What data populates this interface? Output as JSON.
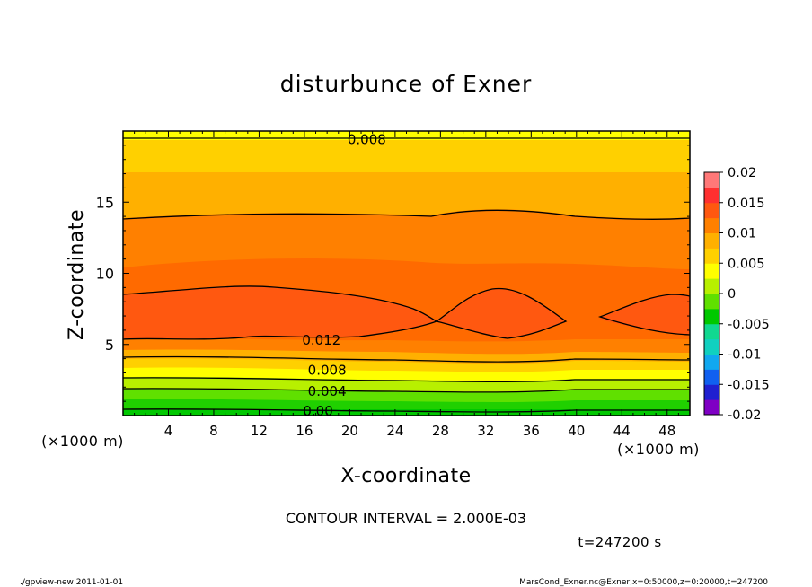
{
  "chart_data": {
    "type": "contour",
    "title": "disturbunce of Exner",
    "xlabel": "X-coordinate",
    "ylabel": "Z-coordinate",
    "x_unit": "(×1000 m)",
    "y_unit": "(×1000 m)",
    "xlim": [
      0,
      50
    ],
    "ylim": [
      0,
      20
    ],
    "x_ticks": [
      4,
      8,
      12,
      16,
      20,
      24,
      28,
      32,
      36,
      40,
      44,
      48
    ],
    "y_ticks": [
      5,
      10,
      15
    ],
    "colorbar": {
      "ticks": [
        "0.02",
        "0.015",
        "0.01",
        "0.005",
        "0",
        "-0.005",
        "-0.01",
        "-0.015",
        "-0.02"
      ],
      "min": -0.02,
      "max": 0.02,
      "step": 0.0025,
      "colors": [
        "#7f00c4",
        "#2020d0",
        "#1060f0",
        "#10a8f0",
        "#10d0c0",
        "#10d890",
        "#00c800",
        "#60e000",
        "#b8f000",
        "#ffff00",
        "#ffd000",
        "#ffb000",
        "#ff8000",
        "#ff5810",
        "#ff3030",
        "#ff7878"
      ]
    },
    "contour_labels": [
      {
        "text": "0.008",
        "x": 21.5,
        "z": 19.4
      },
      {
        "text": "0.012",
        "x": 17.5,
        "z": 5.3
      },
      {
        "text": "0.008",
        "x": 18.0,
        "z": 3.2
      },
      {
        "text": "0.004",
        "x": 18.0,
        "z": 1.7
      },
      {
        "text": "0.00",
        "x": 17.2,
        "z": 0.3
      }
    ],
    "contour_interval": "CONTOUR INTERVAL = 2.000E-03",
    "time": "t=247200 s"
  },
  "footer": {
    "left": "./gpview-new  2011-01-01",
    "right": "MarsCond_Exner.nc@Exner,x=0:50000,z=0:20000,t=247200"
  }
}
